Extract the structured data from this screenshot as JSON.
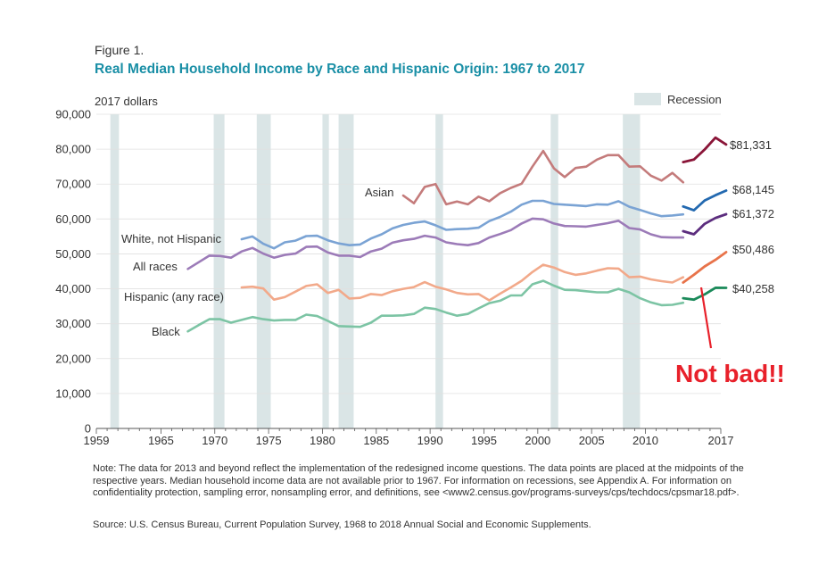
{
  "figure_label": "Figure 1.",
  "title": "Real Median Household Income by Race and Hispanic Origin: 1967 to 2017",
  "unit_label": "2017 dollars",
  "legend": {
    "recession_label": "Recession"
  },
  "note": "Note: The data for 2013 and beyond reflect the implementation of the redesigned income questions. The data points are placed at the midpoints of the respective years. Median household income data are not available prior to 1967. For information on recessions, see Appendix A. For information on confidentiality protection, sampling error, nonsampling error, and definitions, see <www2.census.gov/programs-surveys/cps/techdocs/cpsmar18.pdf>.",
  "source": "Source: U.S. Census Bureau, Current Population Survey, 1968 to 2018 Annual Social and Economic Supplements.",
  "annotation": {
    "text": "Not bad!!",
    "color": "#e8202a"
  },
  "colors": {
    "title": "#1a8fa6",
    "recession": "#dae5e6",
    "axis": "#555555",
    "gridline": "#e0e0e0"
  },
  "chart_data": {
    "type": "line",
    "xlim": [
      1959,
      2017
    ],
    "ylim": [
      0,
      90000
    ],
    "x_ticks": [
      1959,
      1965,
      1970,
      1975,
      1980,
      1985,
      1990,
      1995,
      2000,
      2005,
      2010,
      2017
    ],
    "y_ticks": [
      {
        "value": 0,
        "label": "0"
      },
      {
        "value": 10000,
        "label": "10,000"
      },
      {
        "value": 20000,
        "label": "20,000"
      },
      {
        "value": 30000,
        "label": "30,000"
      },
      {
        "value": 40000,
        "label": "40,000"
      },
      {
        "value": 50000,
        "label": "50,000"
      },
      {
        "value": 60000,
        "label": "60,000"
      },
      {
        "value": 70000,
        "label": "70,000"
      },
      {
        "value": 80000,
        "label": "80,000"
      },
      {
        "value": 90000,
        "label": "90,000"
      }
    ],
    "recessions": [
      [
        1960.3,
        1961.1
      ],
      [
        1969.9,
        1970.9
      ],
      [
        1973.9,
        1975.2
      ],
      [
        1980.0,
        1980.6
      ],
      [
        1981.5,
        1982.9
      ],
      [
        1990.5,
        1991.2
      ],
      [
        2001.2,
        2001.9
      ],
      [
        2007.9,
        2009.5
      ]
    ],
    "series": [
      {
        "name": "Asian",
        "end_label": "$81,331",
        "color": "#c47b7b",
        "color_recent": "#8a1538",
        "x": [
          1987.5,
          1988.5,
          1989.5,
          1990.5,
          1991.5,
          1992.5,
          1993.5,
          1994.5,
          1995.5,
          1996.5,
          1997.5,
          1998.5,
          1999.5,
          2000.5,
          2001.5,
          2002.5,
          2003.5,
          2004.5,
          2005.5,
          2006.5,
          2007.5,
          2008.5,
          2009.5,
          2010.5,
          2011.5,
          2012.5,
          2013.5
        ],
        "values": [
          66700,
          64500,
          69200,
          70000,
          64200,
          65000,
          64200,
          66400,
          65100,
          67400,
          68900,
          70100,
          75000,
          79500,
          74500,
          72000,
          74600,
          75000,
          77000,
          78300,
          78300,
          75000,
          75100,
          72400,
          71000,
          73200,
          70500
        ],
        "x_recent": [
          2013.5,
          2014.5,
          2015.5,
          2016.5,
          2017.5
        ],
        "values_recent": [
          76300,
          77000,
          79900,
          83300,
          81331
        ]
      },
      {
        "name": "White, not Hispanic",
        "end_label": "$68,145",
        "color": "#7aa3d4",
        "color_recent": "#2369b0",
        "x": [
          1972.5,
          1973.5,
          1974.5,
          1975.5,
          1976.5,
          1977.5,
          1978.5,
          1979.5,
          1980.5,
          1981.5,
          1982.5,
          1983.5,
          1984.5,
          1985.5,
          1986.5,
          1987.5,
          1988.5,
          1989.5,
          1990.5,
          1991.5,
          1992.5,
          1993.5,
          1994.5,
          1995.5,
          1996.5,
          1997.5,
          1998.5,
          1999.5,
          2000.5,
          2001.5,
          2002.5,
          2003.5,
          2004.5,
          2005.5,
          2006.5,
          2007.5,
          2008.5,
          2009.5,
          2010.5,
          2011.5,
          2012.5,
          2013.5
        ],
        "values": [
          54200,
          55000,
          52900,
          51600,
          53300,
          53800,
          55100,
          55200,
          53900,
          53000,
          52500,
          52700,
          54400,
          55600,
          57300,
          58300,
          58900,
          59300,
          58200,
          56900,
          57100,
          57200,
          57500,
          59400,
          60600,
          62100,
          64100,
          65200,
          65200,
          64300,
          64100,
          63900,
          63700,
          64200,
          64100,
          65100,
          63500,
          62600,
          61600,
          60800,
          61000,
          61300
        ],
        "x_recent": [
          2013.5,
          2014.5,
          2015.5,
          2016.5,
          2017.5
        ],
        "values_recent": [
          63600,
          62500,
          65300,
          66800,
          68145
        ]
      },
      {
        "name": "All races",
        "end_label": "$61,372",
        "color": "#9c7bb8",
        "color_recent": "#5c2d7e",
        "x": [
          1967.5,
          1968.5,
          1969.5,
          1970.5,
          1971.5,
          1972.5,
          1973.5,
          1974.5,
          1975.5,
          1976.5,
          1977.5,
          1978.5,
          1979.5,
          1980.5,
          1981.5,
          1982.5,
          1983.5,
          1984.5,
          1985.5,
          1986.5,
          1987.5,
          1988.5,
          1989.5,
          1990.5,
          1991.5,
          1992.5,
          1993.5,
          1994.5,
          1995.5,
          1996.5,
          1997.5,
          1998.5,
          1999.5,
          2000.5,
          2001.5,
          2002.5,
          2003.5,
          2004.5,
          2005.5,
          2006.5,
          2007.5,
          2008.5,
          2009.5,
          2010.5,
          2011.5,
          2012.5,
          2013.5
        ],
        "values": [
          45700,
          47600,
          49500,
          49400,
          48900,
          50700,
          51700,
          50100,
          48900,
          49700,
          50100,
          52000,
          52100,
          50400,
          49500,
          49500,
          49100,
          50700,
          51500,
          53200,
          53900,
          54300,
          55200,
          54700,
          53300,
          52800,
          52500,
          53100,
          54700,
          55700,
          56800,
          58700,
          60100,
          59900,
          58700,
          58000,
          57900,
          57800,
          58300,
          58800,
          59500,
          57400,
          57000,
          55600,
          54800,
          54700,
          54700
        ],
        "x_recent": [
          2013.5,
          2014.5,
          2015.5,
          2016.5,
          2017.5
        ],
        "values_recent": [
          56500,
          55600,
          58600,
          60300,
          61372
        ]
      },
      {
        "name": "Hispanic (any race)",
        "end_label": "$50,486",
        "color": "#f2a98a",
        "color_recent": "#e8734a",
        "x": [
          1972.5,
          1973.5,
          1974.5,
          1975.5,
          1976.5,
          1977.5,
          1978.5,
          1979.5,
          1980.5,
          1981.5,
          1982.5,
          1983.5,
          1984.5,
          1985.5,
          1986.5,
          1987.5,
          1988.5,
          1989.5,
          1990.5,
          1991.5,
          1992.5,
          1993.5,
          1994.5,
          1995.5,
          1996.5,
          1997.5,
          1998.5,
          1999.5,
          2000.5,
          2001.5,
          2002.5,
          2003.5,
          2004.5,
          2005.5,
          2006.5,
          2007.5,
          2008.5,
          2009.5,
          2010.5,
          2011.5,
          2012.5,
          2013.5
        ],
        "values": [
          40400,
          40600,
          40100,
          36900,
          37600,
          39200,
          40800,
          41300,
          38800,
          39700,
          37200,
          37400,
          38500,
          38200,
          39300,
          40000,
          40500,
          41900,
          40600,
          39800,
          38800,
          38400,
          38500,
          36700,
          38600,
          40400,
          42300,
          44800,
          46900,
          46100,
          44800,
          44000,
          44400,
          45200,
          45900,
          45800,
          43300,
          43500,
          42700,
          42200,
          41800,
          43300
        ],
        "x_recent": [
          2013.5,
          2014.5,
          2015.5,
          2016.5,
          2017.5
        ],
        "values_recent": [
          41800,
          44000,
          46400,
          48300,
          50486
        ]
      },
      {
        "name": "Black",
        "end_label": "$40,258",
        "color": "#7cc4a4",
        "color_recent": "#1b8a5a",
        "x": [
          1967.5,
          1968.5,
          1969.5,
          1970.5,
          1971.5,
          1972.5,
          1973.5,
          1974.5,
          1975.5,
          1976.5,
          1977.5,
          1978.5,
          1979.5,
          1980.5,
          1981.5,
          1982.5,
          1983.5,
          1984.5,
          1985.5,
          1986.5,
          1987.5,
          1988.5,
          1989.5,
          1990.5,
          1991.5,
          1992.5,
          1993.5,
          1994.5,
          1995.5,
          1996.5,
          1997.5,
          1998.5,
          1999.5,
          2000.5,
          2001.5,
          2002.5,
          2003.5,
          2004.5,
          2005.5,
          2006.5,
          2007.5,
          2008.5,
          2009.5,
          2010.5,
          2011.5,
          2012.5,
          2013.5
        ],
        "values": [
          27800,
          29600,
          31300,
          31300,
          30300,
          31100,
          31900,
          31300,
          30900,
          31100,
          31100,
          32600,
          32200,
          30800,
          29300,
          29200,
          29100,
          30300,
          32300,
          32300,
          32400,
          32800,
          34600,
          34200,
          33200,
          32300,
          32800,
          34400,
          35900,
          36600,
          38100,
          38100,
          41300,
          42300,
          40900,
          39700,
          39600,
          39300,
          39000,
          39000,
          40000,
          39000,
          37300,
          36100,
          35300,
          35400,
          36000
        ],
        "x_recent": [
          2013.5,
          2014.5,
          2015.5,
          2016.5,
          2017.5
        ],
        "values_recent": [
          37300,
          36900,
          38400,
          40300,
          40258
        ]
      }
    ]
  }
}
